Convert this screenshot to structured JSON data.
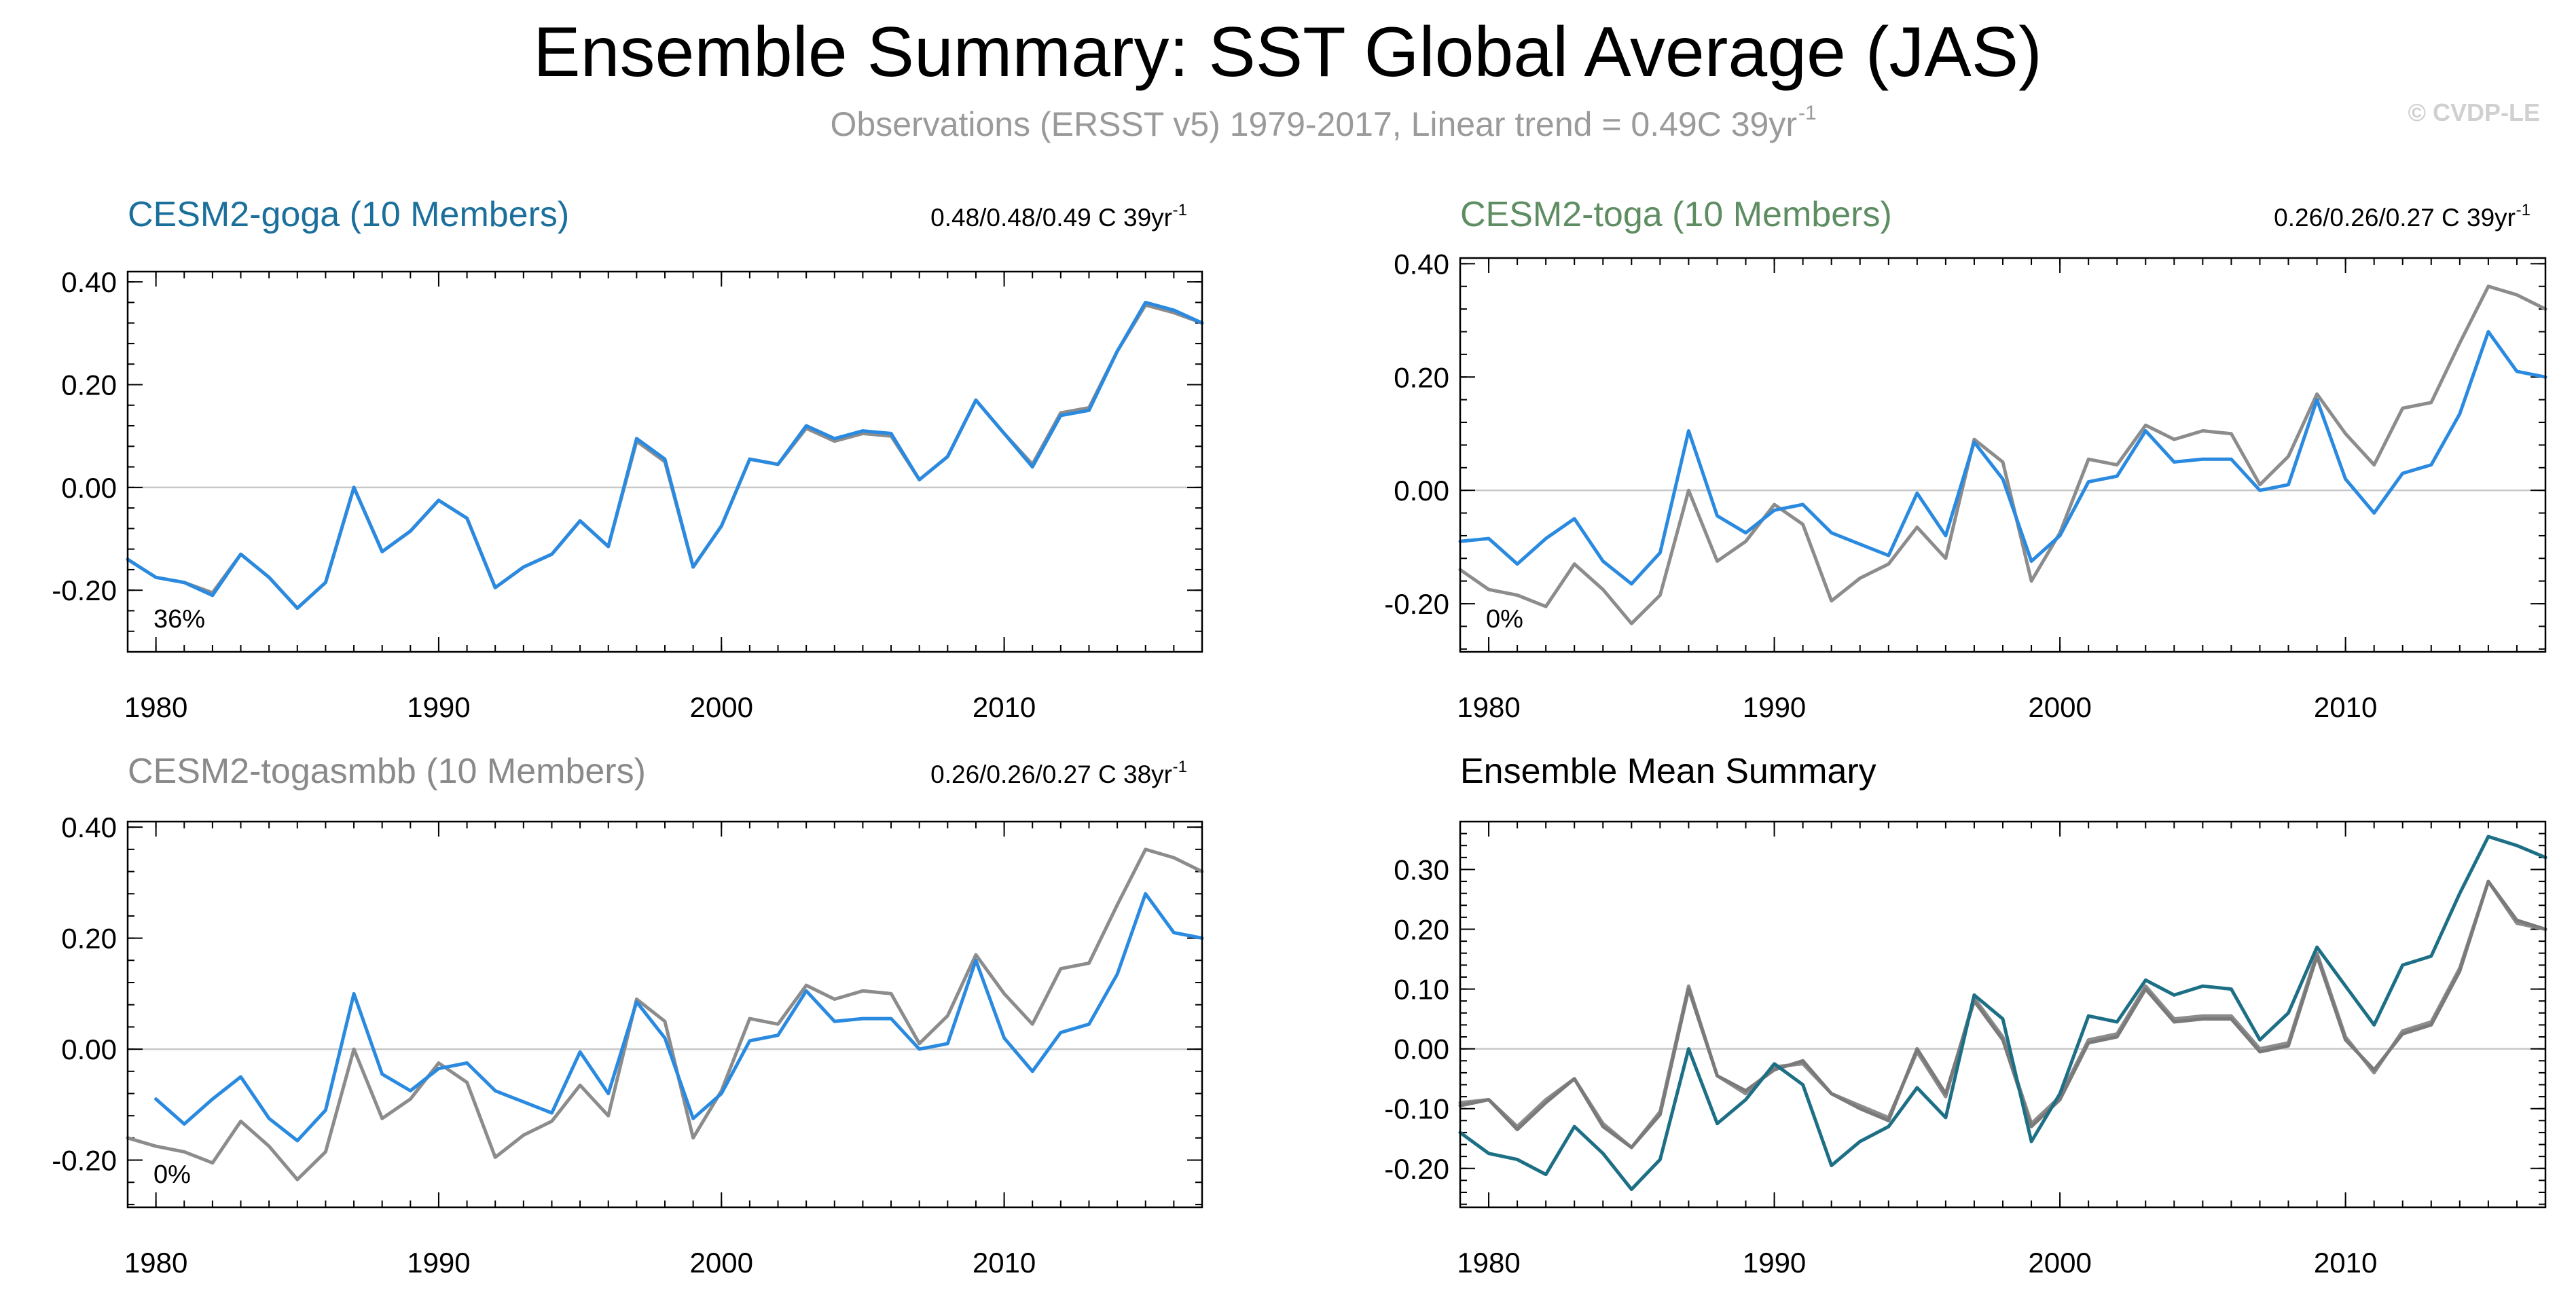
{
  "header": {
    "title": "Ensemble Summary: SST Global Average (JAS)",
    "subtitle_main": "Observations (ERSST v5) 1979-2017, Linear trend = 0.49C 39yr",
    "subtitle_sup": "-1",
    "credit": "© CVDP-LE"
  },
  "chart_data": [
    {
      "type": "line",
      "title": "CESM2-goga (10 Members)",
      "title_color": "#1b6f9b",
      "trend_text": "0.48/0.48/0.49 C 39yr",
      "trend_sup": "-1",
      "percent_label": "36%",
      "xlim": [
        1979,
        2017
      ],
      "ylim": [
        -0.32,
        0.42
      ],
      "yticks": [
        -0.2,
        0.0,
        0.2,
        0.4
      ],
      "ytick_labels": [
        "-0.20",
        "0.00",
        "0.20",
        "0.40"
      ],
      "xticks": [
        1980,
        1990,
        2000,
        2010
      ],
      "xtick_labels": [
        "1980",
        "1990",
        "2000",
        "2010"
      ],
      "series": [
        {
          "color": "#8c8c8c",
          "x_start": 1979,
          "values": [
            -0.14,
            -0.175,
            -0.185,
            -0.205,
            -0.13,
            -0.175,
            -0.235,
            -0.185,
            0.0,
            -0.125,
            -0.085,
            -0.025,
            -0.06,
            -0.195,
            -0.155,
            -0.13,
            -0.065,
            -0.115,
            0.09,
            0.05,
            -0.155,
            -0.075,
            0.055,
            0.045,
            0.115,
            0.09,
            0.105,
            0.1,
            0.015,
            0.06,
            0.17,
            0.105,
            0.045,
            0.145,
            0.155,
            0.265,
            0.355,
            0.34,
            0.32
          ]
        },
        {
          "color": "#2a8ae0",
          "x_start": 1979,
          "values": [
            -0.14,
            -0.175,
            -0.185,
            -0.21,
            -0.13,
            -0.175,
            -0.235,
            -0.185,
            0.0,
            -0.125,
            -0.085,
            -0.025,
            -0.06,
            -0.195,
            -0.155,
            -0.13,
            -0.065,
            -0.115,
            0.095,
            0.055,
            -0.155,
            -0.075,
            0.055,
            0.045,
            0.12,
            0.095,
            0.11,
            0.105,
            0.015,
            0.06,
            0.17,
            0.105,
            0.04,
            0.14,
            0.15,
            0.265,
            0.36,
            0.345,
            0.32
          ]
        }
      ]
    },
    {
      "type": "line",
      "title": "CESM2-toga (10 Members)",
      "title_color": "#5e8d62",
      "trend_text": "0.26/0.26/0.27 C 39yr",
      "trend_sup": "-1",
      "percent_label": "0%",
      "xlim": [
        1979,
        2017
      ],
      "ylim": [
        -0.285,
        0.41
      ],
      "yticks": [
        -0.2,
        0.0,
        0.2,
        0.4
      ],
      "ytick_labels": [
        "-0.20",
        "0.00",
        "0.20",
        "0.40"
      ],
      "xticks": [
        1980,
        1990,
        2000,
        2010
      ],
      "xtick_labels": [
        "1980",
        "1990",
        "2000",
        "2010"
      ],
      "series": [
        {
          "color": "#8c8c8c",
          "x_start": 1979,
          "values": [
            -0.14,
            -0.175,
            -0.185,
            -0.205,
            -0.13,
            -0.175,
            -0.235,
            -0.185,
            0.0,
            -0.125,
            -0.09,
            -0.025,
            -0.06,
            -0.195,
            -0.155,
            -0.13,
            -0.065,
            -0.12,
            0.09,
            0.05,
            -0.16,
            -0.075,
            0.055,
            0.045,
            0.115,
            0.09,
            0.105,
            0.1,
            0.01,
            0.06,
            0.17,
            0.1,
            0.045,
            0.145,
            0.155,
            0.26,
            0.36,
            0.345,
            0.32
          ]
        },
        {
          "color": "#2a8ae0",
          "x_start": 1979,
          "values": [
            -0.09,
            -0.085,
            -0.13,
            -0.085,
            -0.05,
            -0.125,
            -0.165,
            -0.11,
            0.105,
            -0.045,
            -0.075,
            -0.035,
            -0.025,
            -0.075,
            -0.095,
            -0.115,
            -0.005,
            -0.08,
            0.085,
            0.02,
            -0.125,
            -0.08,
            0.015,
            0.025,
            0.105,
            0.05,
            0.055,
            0.055,
            0.0,
            0.01,
            0.16,
            0.02,
            -0.04,
            0.03,
            0.045,
            0.135,
            0.28,
            0.21,
            0.2
          ]
        }
      ]
    },
    {
      "type": "line",
      "title": "CESM2-togasmbb (10 Members)",
      "title_color": "#8a8a8a",
      "trend_text": "0.26/0.26/0.27 C 38yr",
      "trend_sup": "-1",
      "percent_label": "0%",
      "xlim": [
        1979,
        2017
      ],
      "ylim": [
        -0.285,
        0.41
      ],
      "yticks": [
        -0.2,
        0.0,
        0.2,
        0.4
      ],
      "ytick_labels": [
        "-0.20",
        "0.00",
        "0.20",
        "0.40"
      ],
      "xticks": [
        1980,
        1990,
        2000,
        2010
      ],
      "xtick_labels": [
        "1980",
        "1990",
        "2000",
        "2010"
      ],
      "series": [
        {
          "color": "#8c8c8c",
          "x_start": 1979,
          "values": [
            -0.16,
            -0.175,
            -0.185,
            -0.205,
            -0.13,
            -0.175,
            -0.235,
            -0.185,
            0.0,
            -0.125,
            -0.09,
            -0.025,
            -0.06,
            -0.195,
            -0.155,
            -0.13,
            -0.065,
            -0.12,
            0.09,
            0.05,
            -0.16,
            -0.075,
            0.055,
            0.045,
            0.115,
            0.09,
            0.105,
            0.1,
            0.01,
            0.06,
            0.17,
            0.1,
            0.045,
            0.145,
            0.155,
            0.26,
            0.36,
            0.345,
            0.32
          ]
        },
        {
          "color": "#2a8ae0",
          "x_start": 1980,
          "values": [
            -0.09,
            -0.135,
            -0.09,
            -0.05,
            -0.125,
            -0.165,
            -0.11,
            0.1,
            -0.045,
            -0.075,
            -0.035,
            -0.025,
            -0.075,
            -0.095,
            -0.115,
            -0.005,
            -0.08,
            0.085,
            0.02,
            -0.125,
            -0.08,
            0.015,
            0.025,
            0.105,
            0.05,
            0.055,
            0.055,
            0.0,
            0.01,
            0.16,
            0.02,
            -0.04,
            0.03,
            0.045,
            0.135,
            0.28,
            0.21,
            0.2
          ]
        }
      ]
    },
    {
      "type": "line",
      "title": "Ensemble Mean Summary",
      "title_color": "#000000",
      "xlim": [
        1979,
        2017
      ],
      "ylim": [
        -0.265,
        0.38
      ],
      "yticks": [
        -0.2,
        -0.1,
        0.0,
        0.1,
        0.2,
        0.3
      ],
      "ytick_labels": [
        "-0.20",
        "-0.10",
        "0.00",
        "0.10",
        "0.20",
        "0.30"
      ],
      "xticks": [
        1980,
        1990,
        2000,
        2010
      ],
      "xtick_labels": [
        "1980",
        "1990",
        "2000",
        "2010"
      ],
      "series": [
        {
          "color": "#8c8c8c",
          "x_start": 1979,
          "values": [
            -0.09,
            -0.085,
            -0.13,
            -0.085,
            -0.05,
            -0.125,
            -0.165,
            -0.105,
            0.105,
            -0.045,
            -0.075,
            -0.03,
            -0.025,
            -0.075,
            -0.095,
            -0.115,
            -0.005,
            -0.08,
            0.085,
            0.02,
            -0.125,
            -0.08,
            0.015,
            0.025,
            0.105,
            0.05,
            0.055,
            0.055,
            0.0,
            0.01,
            0.16,
            0.02,
            -0.04,
            0.03,
            0.045,
            0.135,
            0.28,
            0.21,
            0.2
          ]
        },
        {
          "color": "#7a7a7a",
          "x_start": 1979,
          "values": [
            -0.095,
            -0.085,
            -0.135,
            -0.09,
            -0.05,
            -0.13,
            -0.165,
            -0.11,
            0.1,
            -0.045,
            -0.07,
            -0.035,
            -0.02,
            -0.075,
            -0.1,
            -0.12,
            0.0,
            -0.075,
            0.08,
            0.015,
            -0.13,
            -0.085,
            0.01,
            0.02,
            0.1,
            0.045,
            0.05,
            0.05,
            -0.005,
            0.005,
            0.155,
            0.015,
            -0.035,
            0.025,
            0.04,
            0.13,
            0.28,
            0.215,
            0.2
          ]
        },
        {
          "color": "#1d6f86",
          "x_start": 1979,
          "values": [
            -0.14,
            -0.175,
            -0.185,
            -0.21,
            -0.13,
            -0.175,
            -0.235,
            -0.185,
            0.0,
            -0.125,
            -0.085,
            -0.025,
            -0.06,
            -0.195,
            -0.155,
            -0.13,
            -0.065,
            -0.115,
            0.09,
            0.05,
            -0.155,
            -0.075,
            0.055,
            0.045,
            0.115,
            0.09,
            0.105,
            0.1,
            0.015,
            0.06,
            0.17,
            0.105,
            0.04,
            0.14,
            0.155,
            0.26,
            0.355,
            0.34,
            0.32
          ]
        }
      ]
    }
  ]
}
